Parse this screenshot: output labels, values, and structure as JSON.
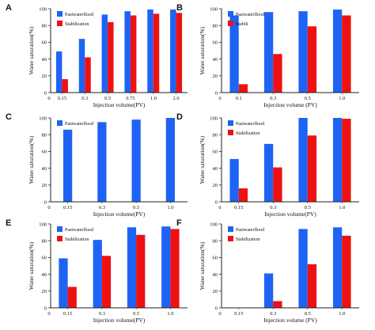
{
  "colors": {
    "series1": "#1f63f5",
    "series2": "#ee1111",
    "axis": "#222222"
  },
  "chart_data": [
    {
      "panel": "A",
      "type": "bar",
      "categories": [
        "0.15",
        "0.3",
        "0.5",
        "0.75",
        "1.0",
        "2.0"
      ],
      "series": [
        {
          "name": "Pastwaterflood",
          "values": [
            49,
            64,
            93,
            97,
            99,
            99
          ]
        },
        {
          "name": "Stabilization",
          "values": [
            16,
            42,
            84,
            92,
            94,
            95
          ]
        }
      ],
      "xlabel": "Injection volume(PV)",
      "ylabel": "Water saturation(%)",
      "ylim": [
        0,
        100
      ],
      "yticks": [
        "0",
        "20",
        "40",
        "60",
        "80",
        "100"
      ],
      "legend_position": "top-left"
    },
    {
      "panel": "B",
      "type": "bar",
      "categories": [
        "0.1",
        "0.3",
        "0.5",
        "1.0"
      ],
      "series": [
        {
          "name": "Pastwaterflood",
          "values": [
            92,
            96,
            97,
            99
          ]
        },
        {
          "name": "Stabili",
          "values": [
            10,
            46,
            79,
            92
          ]
        }
      ],
      "xlabel": "Injection volume (PV)",
      "ylabel": "Water saturation(%)",
      "ylim": [
        0,
        100
      ],
      "yticks": [
        "0",
        "20",
        "40",
        "60",
        "80",
        "100"
      ],
      "legend_position": "top-left"
    },
    {
      "panel": "C",
      "type": "bar",
      "categories": [
        "0.15",
        "0.3",
        "0.5",
        "1.0"
      ],
      "series": [
        {
          "name": "Pastwaterflood",
          "values": [
            86,
            95,
            98,
            100
          ]
        }
      ],
      "xlabel": "Injection volume(PV)",
      "ylabel": "Water saturation(%)",
      "ylim": [
        0,
        100
      ],
      "yticks": [
        "0",
        "20",
        "40",
        "60",
        "80",
        "100"
      ],
      "legend_position": "top-left"
    },
    {
      "panel": "D",
      "type": "bar",
      "categories": [
        "0.15",
        "0.3",
        "0.5",
        "1.0"
      ],
      "series": [
        {
          "name": "Pastwaterflood",
          "values": [
            51,
            69,
            100,
            100
          ]
        },
        {
          "name": "Stabilization",
          "values": [
            16,
            41,
            79,
            99
          ]
        }
      ],
      "xlabel": "Injection volume(PV)",
      "ylabel": "Water saturation(%)",
      "ylim": [
        0,
        100
      ],
      "yticks": [
        "0",
        "20",
        "40",
        "60",
        "80",
        "100"
      ],
      "legend_position": "top-left"
    },
    {
      "panel": "E",
      "type": "bar",
      "categories": [
        "0.15",
        "0.3",
        "0.5",
        "1.0"
      ],
      "series": [
        {
          "name": "Pastwaterflood",
          "values": [
            59,
            81,
            96,
            97
          ]
        },
        {
          "name": "Stabilization",
          "values": [
            25,
            62,
            87,
            94
          ]
        }
      ],
      "xlabel": "Injection volume(PV)",
      "ylabel": "Water saturation(%)",
      "ylim": [
        0,
        100
      ],
      "yticks": [
        "0",
        "20",
        "40",
        "60",
        "80",
        "100"
      ],
      "legend_position": "top-left"
    },
    {
      "panel": "F",
      "type": "bar",
      "categories": [
        "0.15",
        "0.3",
        "0.5",
        "1.0"
      ],
      "series": [
        {
          "name": "Pastwaterflood",
          "values": [
            0,
            41,
            94,
            96
          ]
        },
        {
          "name": "Stabilization",
          "values": [
            0,
            8,
            52,
            86
          ]
        }
      ],
      "xlabel": "Injection volume (PV)",
      "ylabel": "Water saturation(%)",
      "ylim": [
        0,
        100
      ],
      "yticks": [
        "0",
        "20",
        "40",
        "60",
        "80",
        "100"
      ],
      "legend_position": "top-left"
    }
  ]
}
